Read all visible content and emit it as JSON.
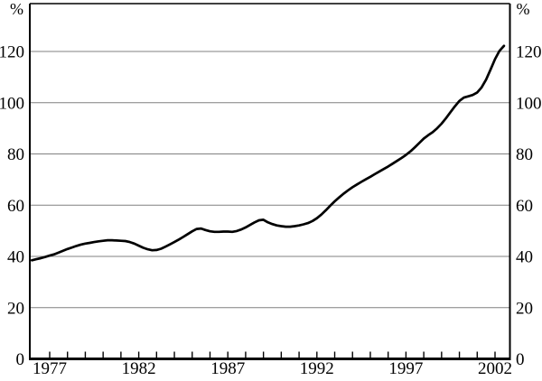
{
  "chart_data": {
    "type": "line",
    "title": "",
    "unit_label_left": "%",
    "unit_label_right": "%",
    "y_axis": {
      "ticks": [
        0,
        20,
        40,
        60,
        80,
        100,
        120
      ],
      "min": 0,
      "max": 138.6,
      "labels_on": "both",
      "grid": true
    },
    "x_axis": {
      "labeled_ticks": [
        1977,
        1982,
        1987,
        1992,
        1997,
        2002
      ],
      "minor_tick_every_years": 1,
      "first_tick_year": 1977,
      "last_tick_year": 2002,
      "data_start": 1976.0,
      "data_end": 2002.5
    },
    "series": [
      {
        "name": "percent-ratio-line",
        "color": "#000000",
        "points": [
          [
            1976.0,
            38.5
          ],
          [
            1976.25,
            38.9
          ],
          [
            1976.5,
            39.3
          ],
          [
            1976.75,
            39.8
          ],
          [
            1977.0,
            40.3
          ],
          [
            1977.25,
            40.8
          ],
          [
            1977.5,
            41.5
          ],
          [
            1977.75,
            42.2
          ],
          [
            1978.0,
            42.9
          ],
          [
            1978.25,
            43.5
          ],
          [
            1978.5,
            44.1
          ],
          [
            1978.75,
            44.6
          ],
          [
            1979.0,
            45.0
          ],
          [
            1979.25,
            45.3
          ],
          [
            1979.5,
            45.6
          ],
          [
            1979.75,
            45.9
          ],
          [
            1980.0,
            46.1
          ],
          [
            1980.25,
            46.3
          ],
          [
            1980.5,
            46.3
          ],
          [
            1980.75,
            46.2
          ],
          [
            1981.0,
            46.1
          ],
          [
            1981.25,
            46.0
          ],
          [
            1981.5,
            45.6
          ],
          [
            1981.75,
            45.0
          ],
          [
            1982.0,
            44.2
          ],
          [
            1982.25,
            43.4
          ],
          [
            1982.5,
            42.8
          ],
          [
            1982.75,
            42.4
          ],
          [
            1983.0,
            42.5
          ],
          [
            1983.25,
            43.0
          ],
          [
            1983.5,
            43.8
          ],
          [
            1983.75,
            44.7
          ],
          [
            1984.0,
            45.6
          ],
          [
            1984.25,
            46.6
          ],
          [
            1984.5,
            47.6
          ],
          [
            1984.75,
            48.7
          ],
          [
            1985.0,
            49.8
          ],
          [
            1985.25,
            50.7
          ],
          [
            1985.5,
            50.9
          ],
          [
            1985.75,
            50.3
          ],
          [
            1986.0,
            49.8
          ],
          [
            1986.25,
            49.6
          ],
          [
            1986.5,
            49.6
          ],
          [
            1986.75,
            49.7
          ],
          [
            1987.0,
            49.7
          ],
          [
            1987.25,
            49.6
          ],
          [
            1987.5,
            49.9
          ],
          [
            1987.75,
            50.5
          ],
          [
            1988.0,
            51.3
          ],
          [
            1988.25,
            52.3
          ],
          [
            1988.5,
            53.3
          ],
          [
            1988.75,
            54.1
          ],
          [
            1989.0,
            54.3
          ],
          [
            1989.25,
            53.3
          ],
          [
            1989.5,
            52.6
          ],
          [
            1989.75,
            52.1
          ],
          [
            1990.0,
            51.8
          ],
          [
            1990.25,
            51.6
          ],
          [
            1990.5,
            51.6
          ],
          [
            1990.75,
            51.8
          ],
          [
            1991.0,
            52.1
          ],
          [
            1991.25,
            52.5
          ],
          [
            1991.5,
            53.0
          ],
          [
            1991.75,
            53.8
          ],
          [
            1992.0,
            54.9
          ],
          [
            1992.25,
            56.3
          ],
          [
            1992.5,
            58.0
          ],
          [
            1992.75,
            59.8
          ],
          [
            1993.0,
            61.5
          ],
          [
            1993.25,
            63.0
          ],
          [
            1993.5,
            64.5
          ],
          [
            1993.75,
            65.8
          ],
          [
            1994.0,
            67.0
          ],
          [
            1994.25,
            68.1
          ],
          [
            1994.5,
            69.1
          ],
          [
            1994.75,
            70.1
          ],
          [
            1995.0,
            71.1
          ],
          [
            1995.25,
            72.1
          ],
          [
            1995.5,
            73.1
          ],
          [
            1995.75,
            74.1
          ],
          [
            1996.0,
            75.1
          ],
          [
            1996.25,
            76.2
          ],
          [
            1996.5,
            77.3
          ],
          [
            1996.75,
            78.4
          ],
          [
            1997.0,
            79.6
          ],
          [
            1997.25,
            81.0
          ],
          [
            1997.5,
            82.6
          ],
          [
            1997.75,
            84.3
          ],
          [
            1998.0,
            86.0
          ],
          [
            1998.25,
            87.3
          ],
          [
            1998.5,
            88.5
          ],
          [
            1998.75,
            90.0
          ],
          [
            1999.0,
            91.8
          ],
          [
            1999.25,
            94.0
          ],
          [
            1999.5,
            96.3
          ],
          [
            1999.75,
            98.6
          ],
          [
            2000.0,
            100.7
          ],
          [
            2000.25,
            102.0
          ],
          [
            2000.5,
            102.5
          ],
          [
            2000.75,
            103.0
          ],
          [
            2001.0,
            104.0
          ],
          [
            2001.25,
            106.0
          ],
          [
            2001.5,
            109.0
          ],
          [
            2001.75,
            113.0
          ],
          [
            2002.0,
            117.0
          ],
          [
            2002.25,
            120.2
          ],
          [
            2002.5,
            122.2
          ]
        ]
      }
    ],
    "colors": {
      "line": "#000000",
      "gridline": "#808080",
      "frame": "#000000",
      "text": "#000000",
      "background": "#ffffff"
    },
    "legend": "none",
    "grid": "horizontal-only"
  }
}
